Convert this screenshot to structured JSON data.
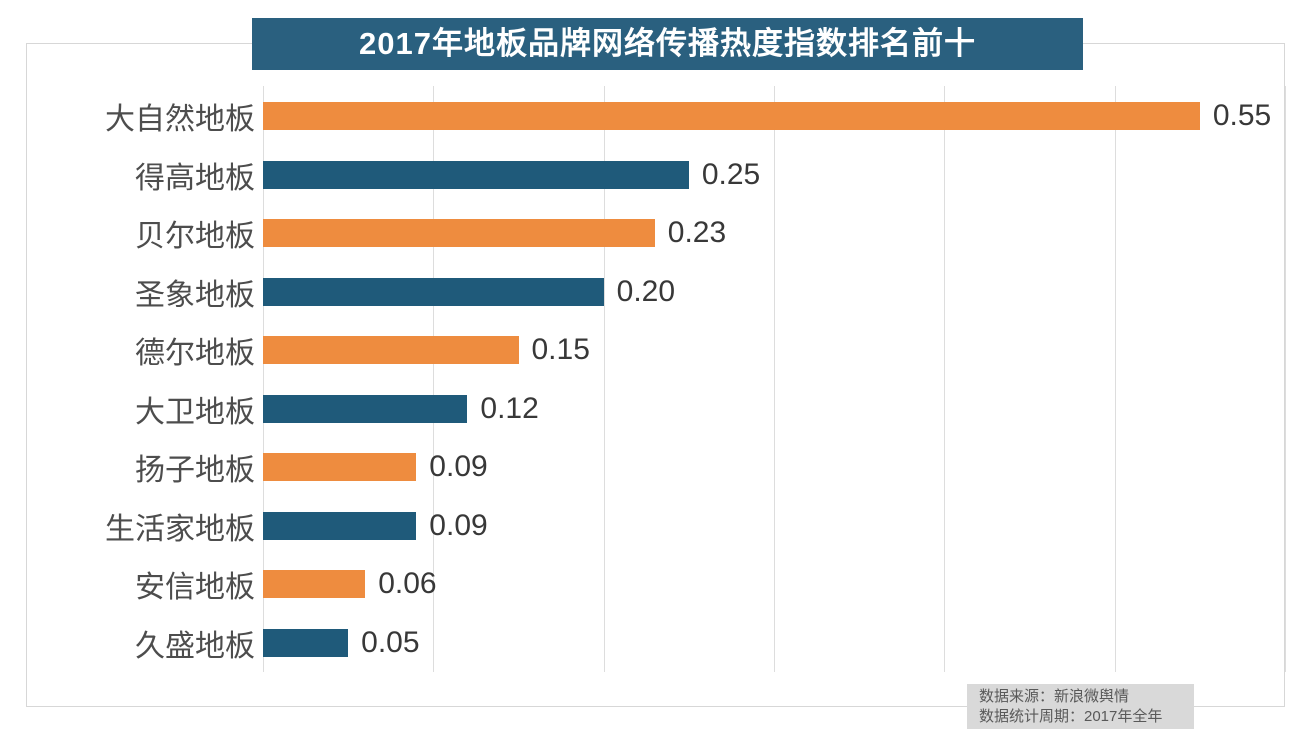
{
  "title": "2017年地板品牌网络传播热度指数排名前十",
  "chart_data": {
    "type": "bar",
    "orientation": "horizontal",
    "title": "2017年地板品牌网络传播热度指数排名前十",
    "categories": [
      "大自然地板",
      "得高地板",
      "贝尔地板",
      "圣象地板",
      "德尔地板",
      "大卫地板",
      "扬子地板",
      "生活家地板",
      "安信地板",
      "久盛地板"
    ],
    "values": [
      0.55,
      0.25,
      0.23,
      0.2,
      0.15,
      0.12,
      0.09,
      0.09,
      0.06,
      0.05
    ],
    "value_labels": [
      "0.55",
      "0.25",
      "0.23",
      "0.20",
      "0.15",
      "0.12",
      "0.09",
      "0.09",
      "0.06",
      "0.05"
    ],
    "xlim": [
      0,
      0.6
    ],
    "gridline_step": 0.1,
    "grid": "vertical-only",
    "legend": "none",
    "data_labels": "outside-end"
  },
  "footer": {
    "source_line": "数据来源：新浪微舆情",
    "period_line": "数据统计周期：2017年全年"
  },
  "colors": {
    "title_bg": "#2a607f",
    "bar_orange": "#ee8c3f",
    "bar_teal": "#1f5a7a",
    "gridline": "#dddddd",
    "border": "#d7d7d7",
    "category_text": "#4d4d4d",
    "value_text": "#383838",
    "footer_bg": "#d9d9d9",
    "footer_text": "#595959"
  }
}
